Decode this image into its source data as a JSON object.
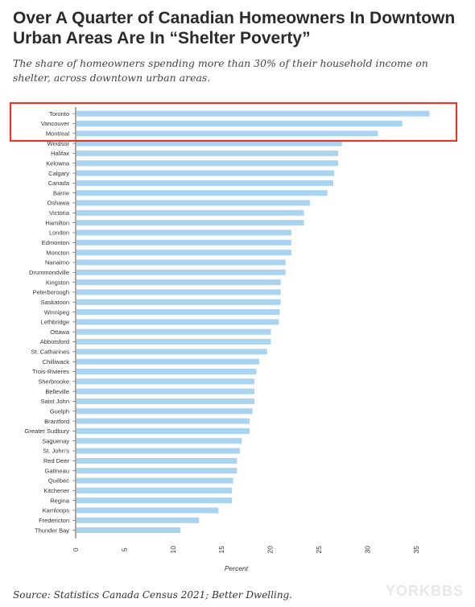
{
  "header": {
    "title": "Over A Quarter of Canadian Homeowners In Downtown Urban Areas Are In “Shelter Poverty”",
    "subtitle": "The share of homeowners spending more than 30% of their household income on shelter, across downtown urban areas."
  },
  "footer": {
    "source": "Source: Statistics Canada Census 2021; Better Dwelling.",
    "watermark": "YORKBBS"
  },
  "colors": {
    "bar": "#a9d3ef",
    "highlight_box": "#e0382a",
    "axis": "#555555"
  },
  "chart_data": {
    "type": "bar",
    "orientation": "horizontal",
    "xlabel": "Percent",
    "xlim": [
      0,
      38
    ],
    "xticks": [
      0,
      5,
      10,
      15,
      20,
      25,
      30,
      35
    ],
    "categories": [
      "Toronto",
      "Vancouver",
      "Montreal",
      "Windsor",
      "Halifax",
      "Kelowna",
      "Calgary",
      "Canada",
      "Barrie",
      "Oshawa",
      "Victoria",
      "Hamilton",
      "London",
      "Edmonton",
      "Moncton",
      "Nanaimo",
      "Drummondville",
      "Kingston",
      "Peterborough",
      "Saskatoon",
      "Winnipeg",
      "Lethbridge",
      "Ottawa",
      "Abbotsford",
      "St. Catharines",
      "Chilliwack",
      "Trois-Rivieres",
      "Sherbrooke",
      "Belleville",
      "Saint John",
      "Guelph",
      "Brantford",
      "Greater Sudbury",
      "Saguenay",
      "St. John's",
      "Red Deer",
      "Gatineau",
      "Québec",
      "Kitchener",
      "Regina",
      "Kamloops",
      "Fredericton",
      "Thunder Bay"
    ],
    "values": [
      36.3,
      33.5,
      31.0,
      27.3,
      26.9,
      26.9,
      26.5,
      26.4,
      25.8,
      24.0,
      23.4,
      23.4,
      22.1,
      22.1,
      22.1,
      21.5,
      21.5,
      21.0,
      21.0,
      21.0,
      20.9,
      20.8,
      20.0,
      20.0,
      19.6,
      18.8,
      18.5,
      18.3,
      18.3,
      18.3,
      18.1,
      17.8,
      17.8,
      17.0,
      16.8,
      16.5,
      16.5,
      16.1,
      16.0,
      16.0,
      14.6,
      12.6,
      10.7
    ],
    "highlighted": [
      "Toronto",
      "Vancouver",
      "Montreal"
    ],
    "grid": false,
    "legend": "none"
  }
}
